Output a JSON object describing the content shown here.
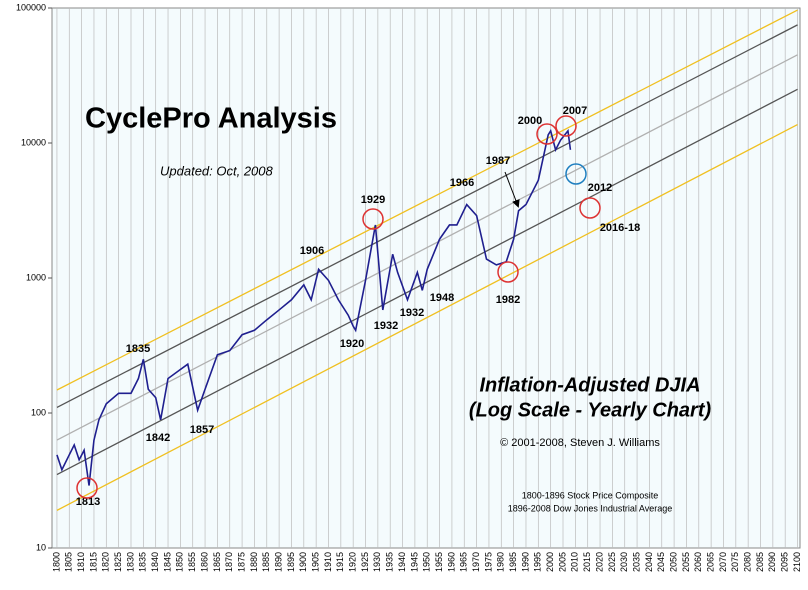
{
  "chart_data": {
    "type": "line",
    "title": "CyclePro Analysis",
    "subtitle": "Updated: Oct, 2008",
    "heading": [
      "Inflation-Adjusted DJIA",
      "(Log Scale - Yearly Chart)"
    ],
    "copyright": "© 2001-2008, Steven J. Williams",
    "sources": [
      "1800-1896 Stock Price Composite",
      "1896-2008 Dow Jones Industrial Average"
    ],
    "log_y": true,
    "grid": true,
    "color": "#1f1f8f",
    "xlim": [
      1798,
      2101
    ],
    "ylim": [
      10,
      100000
    ],
    "yticks": [
      10,
      100,
      1000,
      10000,
      100000
    ],
    "xticks": [
      1800,
      1805,
      1810,
      1815,
      1820,
      1825,
      1830,
      1835,
      1840,
      1845,
      1850,
      1855,
      1860,
      1865,
      1870,
      1875,
      1880,
      1885,
      1890,
      1895,
      1900,
      1905,
      1910,
      1915,
      1920,
      1925,
      1930,
      1935,
      1940,
      1945,
      1950,
      1955,
      1960,
      1965,
      1970,
      1975,
      1980,
      1985,
      1990,
      1995,
      2000,
      2005,
      2010,
      2015,
      2020,
      2025,
      2030,
      2035,
      2040,
      2045,
      2050,
      2055,
      2060,
      2065,
      2070,
      2075,
      2080,
      2085,
      2090,
      2095,
      2100
    ],
    "x": [
      1800,
      1802,
      1805,
      1807,
      1809,
      1811,
      1813,
      1815,
      1817,
      1820,
      1825,
      1830,
      1833,
      1835,
      1837,
      1840,
      1842,
      1845,
      1850,
      1853,
      1857,
      1860,
      1865,
      1870,
      1875,
      1880,
      1885,
      1890,
      1895,
      1900,
      1903,
      1906,
      1910,
      1914,
      1918,
      1920,
      1921,
      1925,
      1929,
      1932,
      1936,
      1938,
      1942,
      1946,
      1948,
      1950,
      1955,
      1959,
      1962,
      1966,
      1970,
      1974,
      1978,
      1982,
      1985,
      1987,
      1990,
      1995,
      1999,
      2000,
      2002,
      2004,
      2007,
      2008
    ],
    "values": [
      49,
      38,
      49,
      58,
      45,
      53,
      29,
      63,
      89,
      117,
      140,
      140,
      180,
      250,
      150,
      130,
      89,
      180,
      210,
      230,
      105,
      150,
      270,
      290,
      380,
      410,
      490,
      580,
      690,
      890,
      690,
      1160,
      960,
      690,
      530,
      440,
      410,
      960,
      2470,
      580,
      1500,
      1100,
      690,
      1100,
      810,
      1160,
      1940,
      2470,
      2470,
      3500,
      2900,
      1380,
      1250,
      1320,
      1940,
      3150,
      3500,
      5300,
      11500,
      12300,
      8900,
      10500,
      12300,
      8900
    ],
    "channels": [
      {
        "color": "#f0c020",
        "x": [
          1800,
          2100
        ],
        "values": [
          148,
          96600
        ]
      },
      {
        "color": "#555555",
        "x": [
          1800,
          2100
        ],
        "values": [
          110,
          75000
        ]
      },
      {
        "color": "#b0b0b0",
        "x": [
          1800,
          2100
        ],
        "values": [
          63,
          45000
        ]
      },
      {
        "color": "#555555",
        "x": [
          1800,
          2100
        ],
        "values": [
          35,
          25000
        ]
      },
      {
        "color": "#f0c020",
        "x": [
          1800,
          2100
        ],
        "values": [
          19,
          13700
        ]
      }
    ],
    "annotations": [
      "1813",
      "1835",
      "1842",
      "1857",
      "1906",
      "1929",
      "1920",
      "1932",
      "1932",
      "1948",
      "1966",
      "1982",
      "1987",
      "2000",
      "2007",
      "2012",
      "2016-18"
    ]
  }
}
